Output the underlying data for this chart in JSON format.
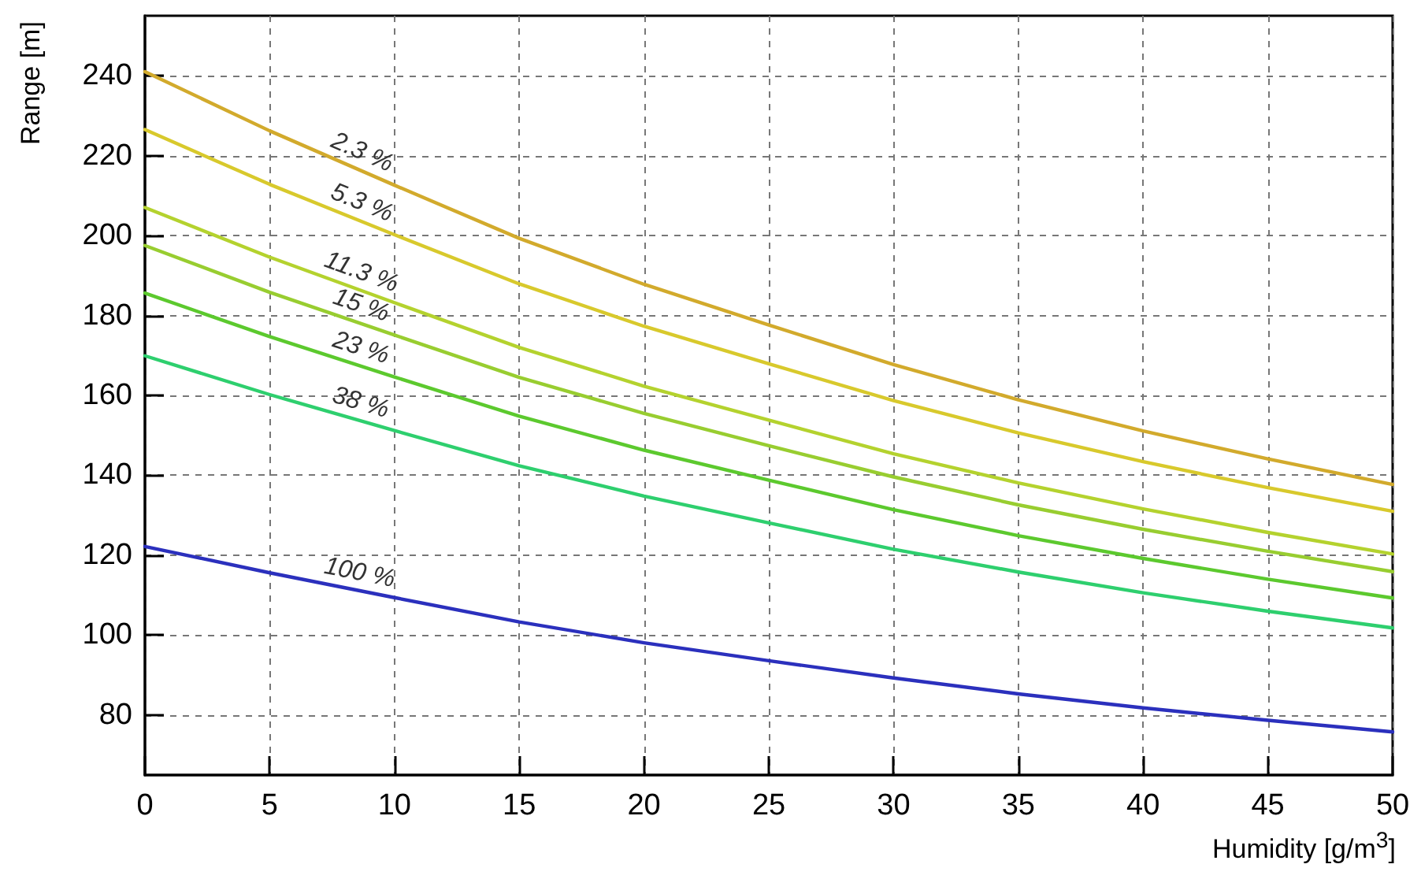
{
  "chart_data": {
    "type": "line",
    "xlabel": "Humidity [g/m$^{3}$]",
    "ylabel": "Range [m]",
    "x": [
      0,
      5,
      10,
      15,
      20,
      25,
      30,
      35,
      40,
      45,
      50
    ],
    "xlim": [
      0,
      50
    ],
    "xticks": [
      0,
      5,
      10,
      15,
      20,
      25,
      30,
      35,
      40,
      45,
      50
    ],
    "ylim": [
      65,
      255
    ],
    "yticks": [
      80,
      100,
      120,
      140,
      160,
      180,
      200,
      220,
      240
    ],
    "grid": true,
    "legend": false,
    "marker": "none",
    "line_style": "solid",
    "series": [
      {
        "name": "2.3 %",
        "color": "#d2aa2c",
        "values": [
          241,
          226.2,
          212.6,
          199.3,
          187.8,
          177.6,
          167.7,
          158.9,
          151.1,
          144.1,
          137.7
        ]
      },
      {
        "name": "5.3 %",
        "color": "#d8c92c",
        "values": [
          226.5,
          212.8,
          200.2,
          187.9,
          177.3,
          167.9,
          158.7,
          150.6,
          143.4,
          136.9,
          131
        ]
      },
      {
        "name": "11.3 %",
        "color": "#b4d22e",
        "values": [
          207,
          194.6,
          183.2,
          172,
          162.3,
          153.8,
          145.4,
          138.1,
          131.6,
          125.7,
          120.3
        ]
      },
      {
        "name": "15 %",
        "color": "#98cd30",
        "values": [
          197.5,
          185.8,
          175.1,
          164.5,
          155.5,
          147.4,
          139.6,
          132.6,
          126.5,
          121,
          115.9
        ]
      },
      {
        "name": "23 %",
        "color": "#5cc92e",
        "values": [
          185.6,
          174.7,
          164.6,
          154.8,
          146.3,
          138.8,
          131.4,
          124.9,
          119.2,
          114,
          109.3
        ]
      },
      {
        "name": "38 %",
        "color": "#2ecf6e",
        "values": [
          169.9,
          160.2,
          151.2,
          142.4,
          134.8,
          128.1,
          121.5,
          115.8,
          110.6,
          106,
          101.8
        ]
      },
      {
        "name": "100 %",
        "color": "#2b30bd",
        "values": [
          122.2,
          115.6,
          109.4,
          103.3,
          98.1,
          93.6,
          89.3,
          85.3,
          81.8,
          78.7,
          75.8
        ]
      }
    ]
  }
}
